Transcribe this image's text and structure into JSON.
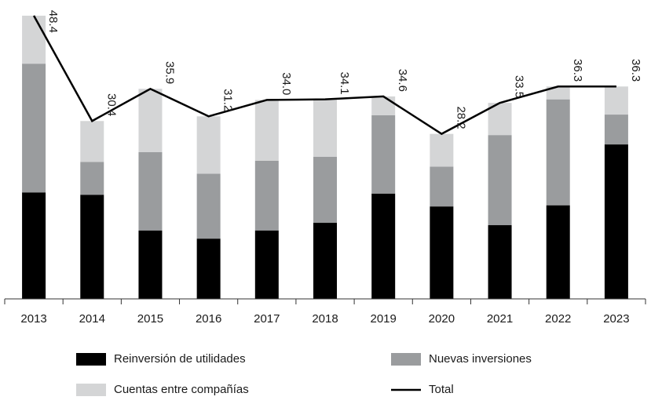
{
  "chart_data": {
    "type": "bar",
    "stacked": true,
    "categories": [
      "2013",
      "2014",
      "2015",
      "2016",
      "2017",
      "2018",
      "2019",
      "2020",
      "2021",
      "2022",
      "2023"
    ],
    "series": [
      {
        "name": "Reinversión de utilidades",
        "color": "#000000",
        "values": [
          18.2,
          17.8,
          11.7,
          10.3,
          11.7,
          13.0,
          18.0,
          15.8,
          12.6,
          16.0,
          26.4
        ]
      },
      {
        "name": "Nuevas inversiones",
        "color": "#9a9c9e",
        "values": [
          22.0,
          5.6,
          13.4,
          11.1,
          11.9,
          11.3,
          13.4,
          6.8,
          15.4,
          18.1,
          5.1
        ]
      },
      {
        "name": "Cuentas entre compañías",
        "color": "#d4d5d6",
        "values": [
          8.2,
          7.0,
          10.8,
          9.8,
          10.4,
          9.8,
          3.2,
          5.6,
          5.5,
          2.2,
          4.8
        ]
      },
      {
        "name": "Total",
        "type": "line",
        "color": "#000000",
        "values": [
          48.4,
          30.4,
          35.9,
          31.2,
          34.0,
          34.1,
          34.6,
          28.2,
          33.5,
          36.3,
          36.3
        ],
        "value_labels": [
          "48.4",
          "30.4",
          "35.9",
          "31.2",
          "34.0",
          "34.1",
          "34.6",
          "28.2",
          "33.5",
          "36.3",
          "36.3"
        ]
      }
    ],
    "ylim": [
      0,
      48.4
    ]
  }
}
